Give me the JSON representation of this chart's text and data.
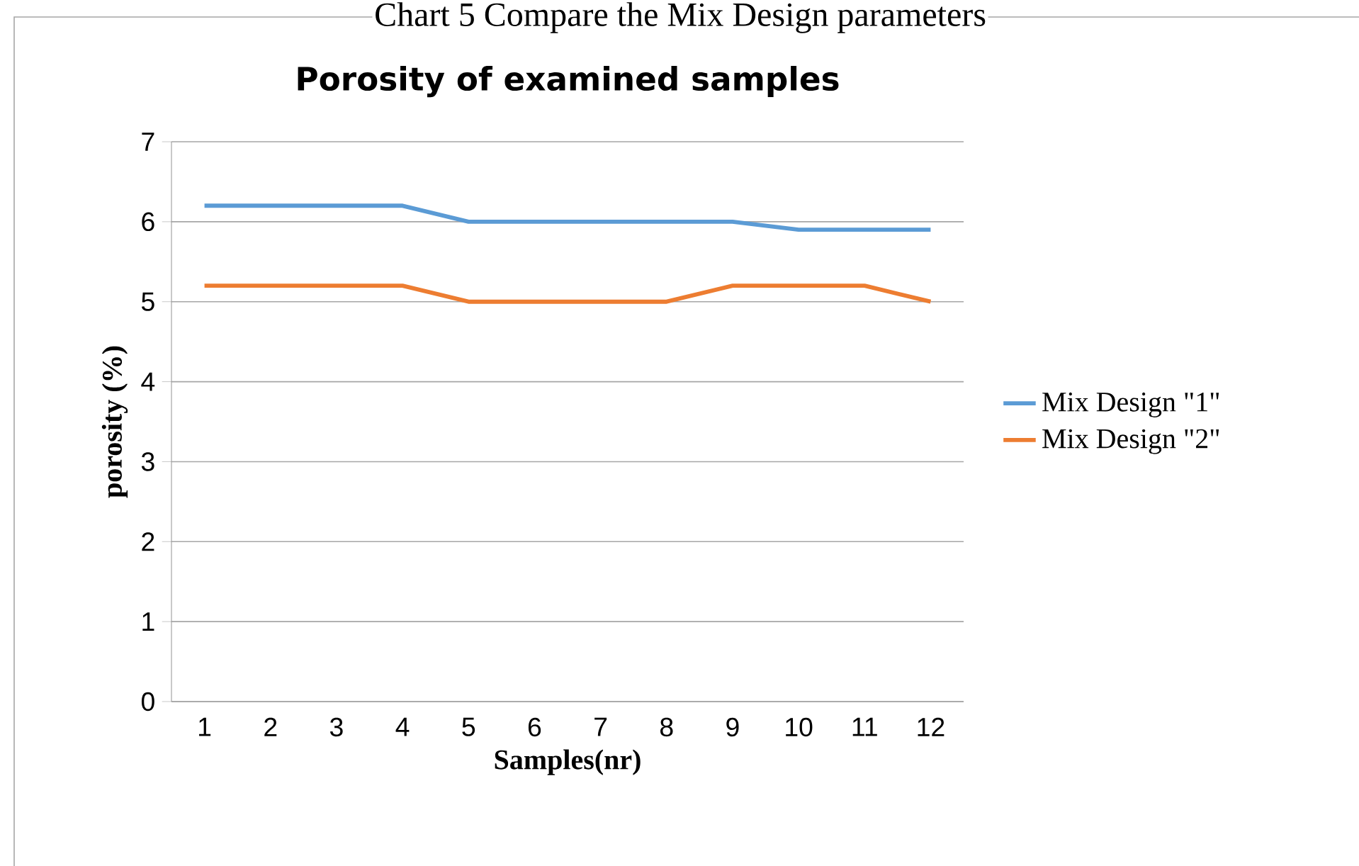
{
  "chart_data": {
    "type": "line",
    "title": "Porosity of examined samples",
    "xlabel": "Samples(nr)",
    "ylabel": "porosity (%)",
    "annotations": [
      "Chart 5 Compare the Mix Design parameters"
    ],
    "categories": [
      "1",
      "2",
      "3",
      "4",
      "5",
      "6",
      "7",
      "8",
      "9",
      "10",
      "11",
      "12"
    ],
    "series": [
      {
        "name": "Mix Design \"1\"",
        "color": "#5b9bd5",
        "values": [
          6.2,
          6.2,
          6.2,
          6.2,
          6.0,
          6.0,
          6.0,
          6.0,
          6.0,
          5.9,
          5.9,
          5.9
        ]
      },
      {
        "name": "Mix Design \"2\"",
        "color": "#ed7d31",
        "values": [
          5.2,
          5.2,
          5.2,
          5.2,
          5.0,
          5.0,
          5.0,
          5.0,
          5.2,
          5.2,
          5.2,
          5.0
        ]
      }
    ],
    "ylim": [
      0,
      7
    ],
    "yticks": [
      0,
      1,
      2,
      3,
      4,
      5,
      6,
      7
    ],
    "grid": "y",
    "legend": "right",
    "marker": "none",
    "line_style": "solid"
  }
}
